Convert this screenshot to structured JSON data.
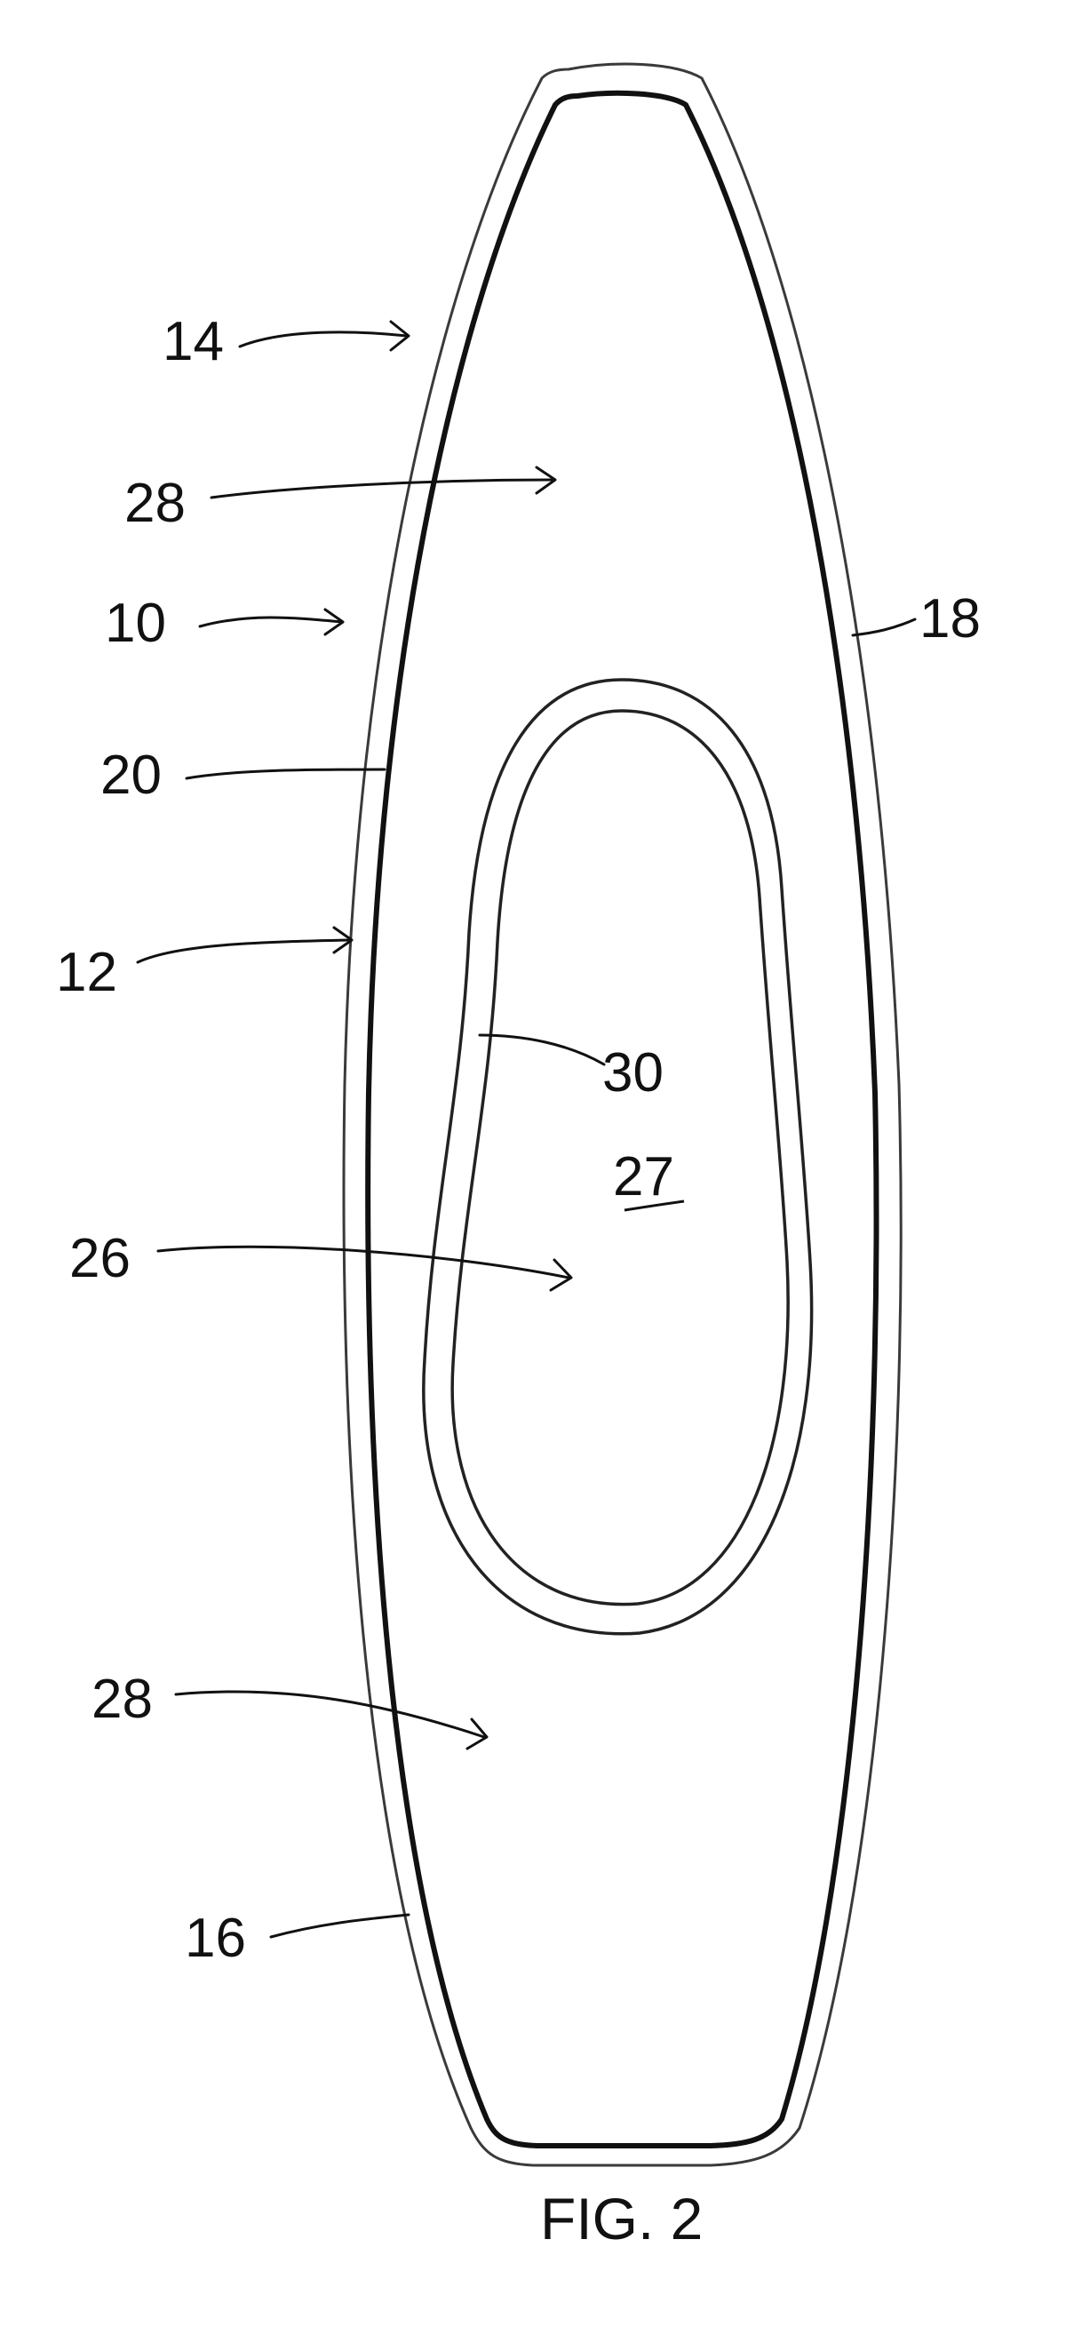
{
  "figure": {
    "caption": "FIG. 2",
    "labels": {
      "l14": "14",
      "l28_top": "28",
      "l10": "10",
      "l18": "18",
      "l20": "20",
      "l12": "12",
      "l30": "30",
      "l27": "27",
      "l26": "26",
      "l28_bottom": "28",
      "l16": "16"
    }
  }
}
